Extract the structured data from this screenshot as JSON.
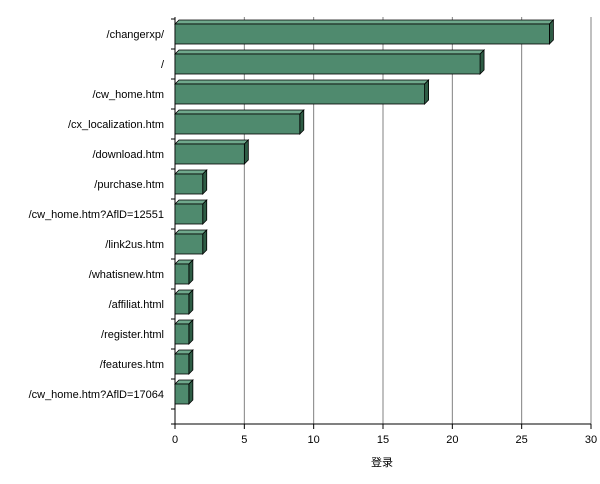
{
  "chart_data": {
    "type": "bar",
    "orientation": "horizontal",
    "categories": [
      "/changerxp/",
      "/",
      "/cw_home.htm",
      "/cx_localization.htm",
      "/download.htm",
      "/purchase.htm",
      "/cw_home.htm?AflD=12551",
      "/link2us.htm",
      "/whatisnew.htm",
      "/affiliat.html",
      "/register.html",
      "/features.htm",
      "/cw_home.htm?AflD=17064"
    ],
    "values": [
      27,
      22,
      18,
      9,
      5,
      2,
      2,
      2,
      1,
      1,
      1,
      1,
      1
    ],
    "xlabel": "登录",
    "ylabel": "",
    "xlim": [
      0,
      30
    ],
    "xticks": [
      "0",
      "5",
      "10",
      "15",
      "20",
      "25",
      "30"
    ],
    "grid": "vertical",
    "legend": "none",
    "colors": {
      "bar_front": "#4f8a6e",
      "bar_top": "#6fa88c",
      "bar_side": "#2e5c45",
      "gridline": "#808080",
      "axis": "#000000"
    }
  }
}
